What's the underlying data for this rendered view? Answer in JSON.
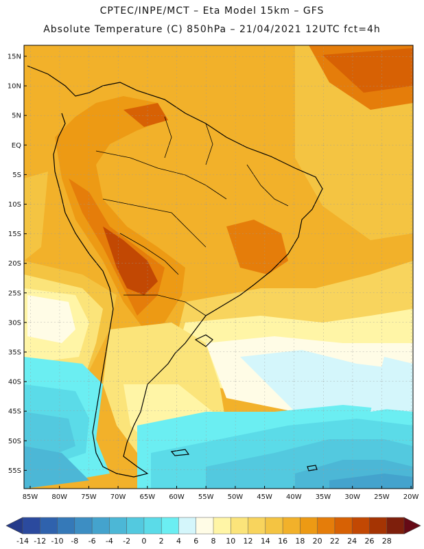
{
  "title_line1": "CPTEC/INPE/MCT –  Eta Model 15km – GFS",
  "title_line2": "Absolute Temperature (C) 850hPa – 21/04/2021 12UTC fct=4h",
  "lat_labels": [
    "15N",
    "10N",
    "5N",
    "EQ",
    "5S",
    "10S",
    "15S",
    "20S",
    "25S",
    "30S",
    "35S",
    "40S",
    "45S",
    "50S",
    "55S"
  ],
  "lon_labels": [
    "85W",
    "80W",
    "75W",
    "70W",
    "65W",
    "60W",
    "55W",
    "50W",
    "45W",
    "40W",
    "35W",
    "30W",
    "25W",
    "20W"
  ],
  "colorbar": {
    "levels": [
      "-14",
      "-12",
      "-10",
      "-8",
      "-6",
      "-4",
      "-2",
      "0",
      "2",
      "4",
      "6",
      "8",
      "10",
      "12",
      "14",
      "16",
      "18",
      "20",
      "22",
      "24",
      "26",
      "28"
    ],
    "colors": [
      "#2b4a9e",
      "#2f62ad",
      "#3579b8",
      "#3d8ec3",
      "#44a3cd",
      "#4cb7d6",
      "#53c9df",
      "#5bdbe8",
      "#6beef2",
      "#d4f6fb",
      "#fffce6",
      "#fff5a6",
      "#fbe47a",
      "#f8d45d",
      "#f4c442",
      "#f2b12a",
      "#ed9a14",
      "#e57d0a",
      "#d76104",
      "#c24803",
      "#a53403",
      "#7e1f0c"
    ],
    "under_color": "#243a8a",
    "over_color": "#650a16",
    "units": "C"
  }
}
